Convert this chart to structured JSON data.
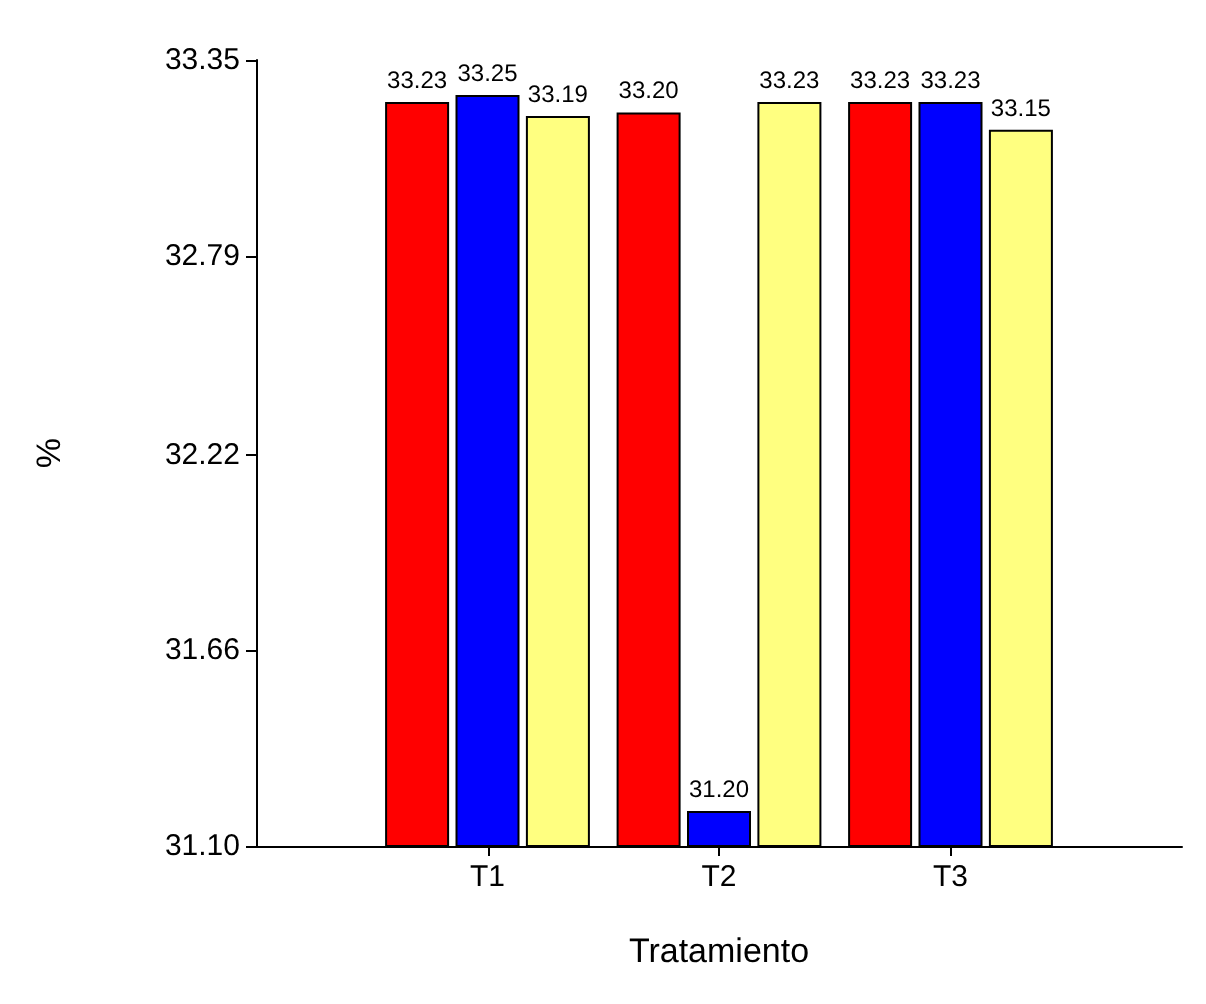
{
  "chart_data": {
    "type": "bar",
    "xlabel": "Tratamiento",
    "ylabel": "%",
    "categories": [
      "T1",
      "T2",
      "T3"
    ],
    "series": [
      {
        "color": "#ff0000",
        "values": [
          33.23,
          33.2,
          33.23
        ],
        "value_labels": [
          "33.23",
          "33.20",
          "33.23"
        ]
      },
      {
        "color": "#0000ff",
        "values": [
          33.25,
          31.2,
          33.23
        ],
        "value_labels": [
          "33.25",
          "31.20",
          "33.23"
        ]
      },
      {
        "color": "#ffff80",
        "values": [
          33.19,
          33.23,
          33.15
        ],
        "value_labels": [
          "33.19",
          "33.23",
          "33.15"
        ]
      }
    ],
    "ylim": [
      31.1,
      33.35
    ],
    "yticks": [
      {
        "value": 31.1,
        "label": "31.10"
      },
      {
        "value": 31.66,
        "label": "31.66"
      },
      {
        "value": 32.22,
        "label": "32.22"
      },
      {
        "value": 32.79,
        "label": "32.79"
      },
      {
        "value": 33.35,
        "label": "33.35"
      }
    ],
    "grid": false
  }
}
